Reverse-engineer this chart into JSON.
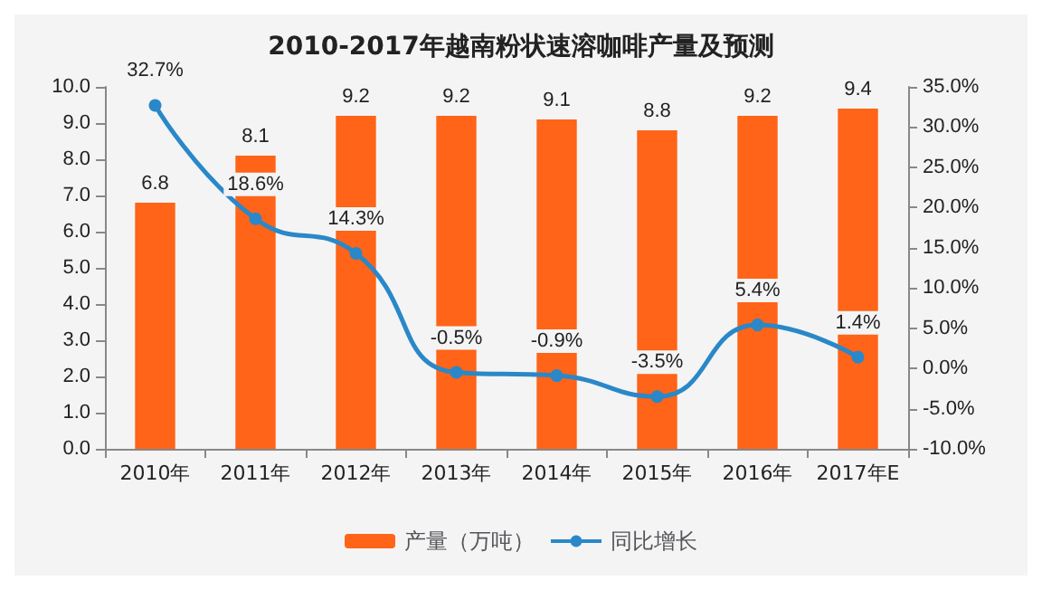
{
  "chart_data": {
    "type": "bar",
    "title": "2010-2017年越南粉状速溶咖啡产量及预测",
    "categories": [
      "2010年",
      "2011年",
      "2012年",
      "2013年",
      "2014年",
      "2015年",
      "2016年",
      "2017年E"
    ],
    "series": [
      {
        "name": "产量（万吨）",
        "color": "#ff6418",
        "values": [
          6.8,
          8.1,
          9.2,
          9.2,
          9.1,
          8.8,
          9.2,
          9.4
        ]
      },
      {
        "name": "同比增长",
        "type": "line",
        "axis": "y2",
        "color": "#2a88c8",
        "values": [
          32.7,
          18.6,
          14.3,
          -0.5,
          -0.9,
          -3.5,
          5.4,
          1.4
        ],
        "value_labels": [
          "32.7%",
          "18.6%",
          "14.3%",
          "-0.5%",
          "-0.9%",
          "-3.5%",
          "5.4%",
          "1.4%"
        ]
      }
    ],
    "ylim": [
      0,
      10
    ],
    "yticks": [
      {
        "value": 0,
        "label": "0.0"
      },
      {
        "value": 1,
        "label": "1.0"
      },
      {
        "value": 2,
        "label": "2.0"
      },
      {
        "value": 3,
        "label": "3.0"
      },
      {
        "value": 4,
        "label": "4.0"
      },
      {
        "value": 5,
        "label": "5.0"
      },
      {
        "value": 6,
        "label": "6.0"
      },
      {
        "value": 7,
        "label": "7.0"
      },
      {
        "value": 8,
        "label": "8.0"
      },
      {
        "value": 9,
        "label": "9.0"
      },
      {
        "value": 10,
        "label": "10.0"
      }
    ],
    "y2lim": [
      -10,
      35
    ],
    "y2ticks": [
      {
        "value": -10,
        "label": "-10.0%"
      },
      {
        "value": -5,
        "label": "-5.0%"
      },
      {
        "value": 0,
        "label": "0.0%"
      },
      {
        "value": 5,
        "label": "5.0%"
      },
      {
        "value": 10,
        "label": "10.0%"
      },
      {
        "value": 15,
        "label": "15.0%"
      },
      {
        "value": 20,
        "label": "20.0%"
      },
      {
        "value": 25,
        "label": "25.0%"
      },
      {
        "value": 30,
        "label": "30.0%"
      },
      {
        "value": 35,
        "label": "35.0%"
      }
    ],
    "data_labels": true,
    "marker": "circle",
    "legend": "bottom",
    "grid": false
  }
}
